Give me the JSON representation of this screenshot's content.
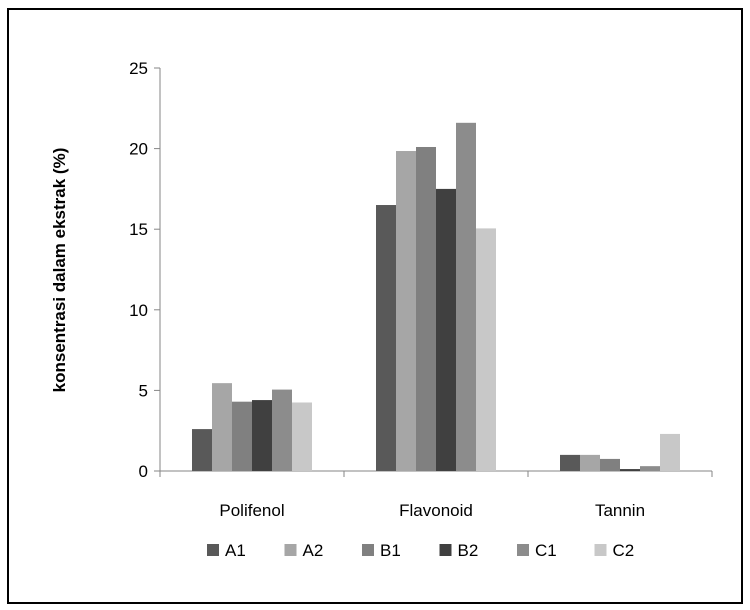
{
  "chart_data": {
    "type": "bar",
    "title": "",
    "xlabel": "",
    "ylabel": "konsentrasi dalam ekstrak (%)",
    "ylim": [
      0,
      25
    ],
    "yticks": [
      0,
      5,
      10,
      15,
      20,
      25
    ],
    "grid": false,
    "legend_position": "bottom",
    "categories": [
      "Polifenol",
      "Flavonoid",
      "Tannin"
    ],
    "series": [
      {
        "name": "A1",
        "color": "#595959",
        "values": [
          2.6,
          16.5,
          1.0
        ]
      },
      {
        "name": "A2",
        "color": "#a6a6a6",
        "values": [
          5.45,
          19.85,
          1.0
        ]
      },
      {
        "name": "B1",
        "color": "#808080",
        "values": [
          4.3,
          20.1,
          0.75
        ]
      },
      {
        "name": "B2",
        "color": "#404040",
        "values": [
          4.4,
          17.5,
          0.12
        ]
      },
      {
        "name": "C1",
        "color": "#8c8c8c",
        "values": [
          5.05,
          21.6,
          0.3
        ]
      },
      {
        "name": "C2",
        "color": "#c8c8c8",
        "values": [
          4.25,
          15.05,
          2.3
        ]
      }
    ]
  }
}
